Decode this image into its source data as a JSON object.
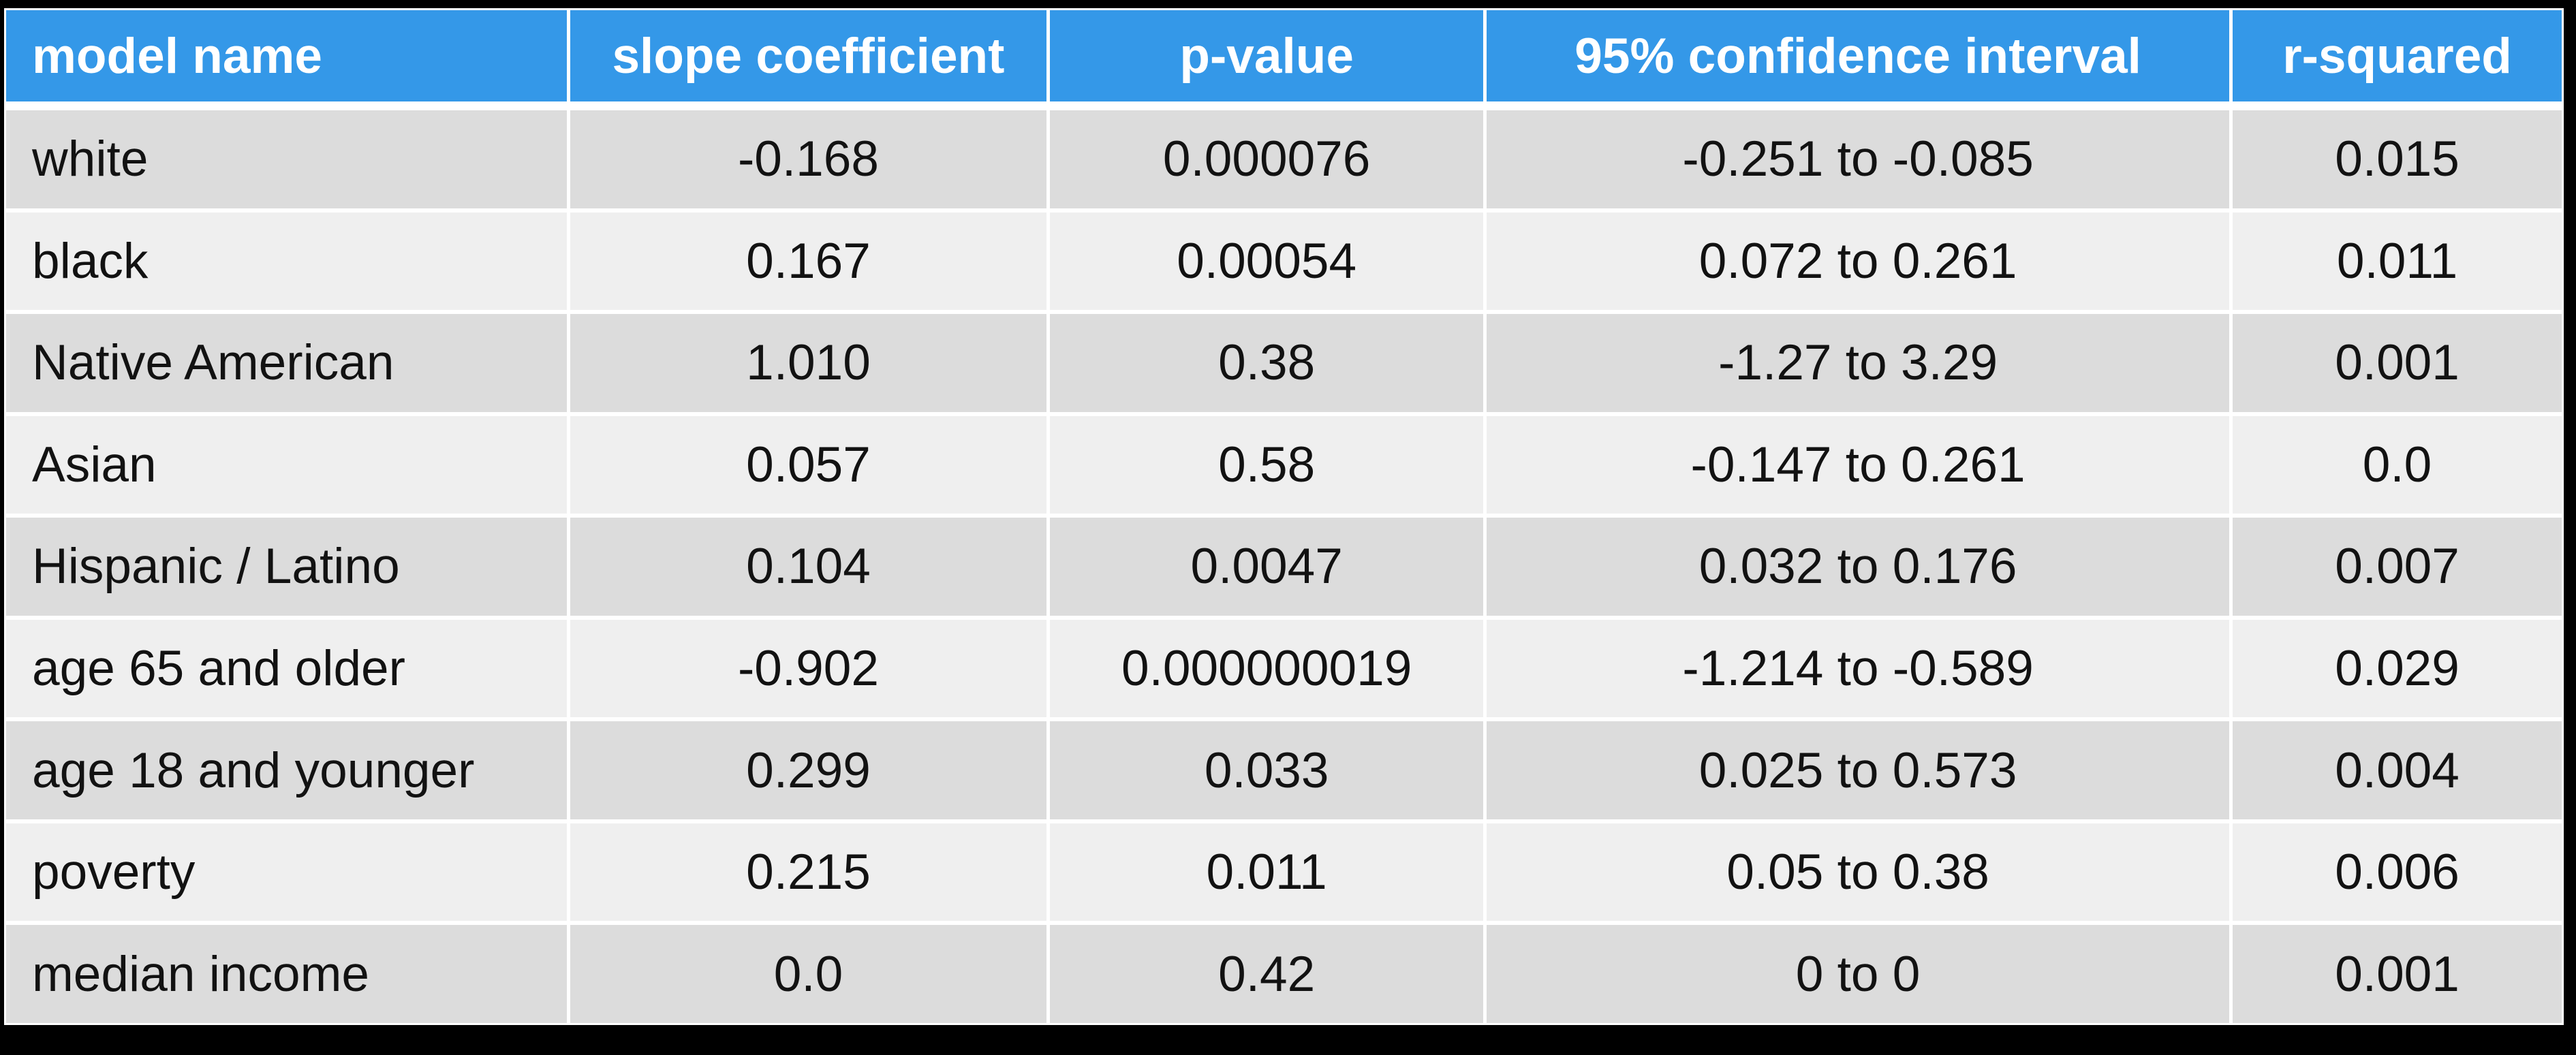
{
  "chart_data": {
    "type": "table",
    "title": "",
    "columns": [
      "model name",
      "slope coefficient",
      "p-value",
      "95% confidence interval",
      "r-squared"
    ],
    "rows": [
      [
        "white",
        "-0.168",
        "0.000076",
        "-0.251 to -0.085",
        "0.015"
      ],
      [
        "black",
        "0.167",
        "0.00054",
        "0.072 to 0.261",
        "0.011"
      ],
      [
        "Native American",
        "1.010",
        "0.38",
        "-1.27 to 3.29",
        "0.001"
      ],
      [
        "Asian",
        "0.057",
        "0.58",
        "-0.147 to 0.261",
        "0.0"
      ],
      [
        "Hispanic / Latino",
        "0.104",
        "0.0047",
        "0.032 to 0.176",
        "0.007"
      ],
      [
        "age 65 and older",
        "-0.902",
        "0.000000019",
        "-1.214 to -0.589",
        "0.029"
      ],
      [
        "age 18 and younger",
        "0.299",
        "0.033",
        "0.025 to 0.573",
        "0.004"
      ],
      [
        "poverty",
        "0.215",
        "0.011",
        "0.05 to 0.38",
        "0.006"
      ],
      [
        "median income",
        "0.0",
        "0.42",
        "0 to 0",
        "0.001"
      ]
    ],
    "layout": {
      "header_position": "top",
      "row_striping": "alternating starting dark",
      "column_alignment": [
        "left",
        "center",
        "center",
        "center",
        "center"
      ]
    }
  },
  "colors": {
    "header_bg": "#3498e8",
    "header_text": "#ffffff",
    "row_dark": "#dcdcdc",
    "row_light": "#efefef",
    "grid": "#ffffff",
    "page_bg": "#000000",
    "body_text": "#121212"
  }
}
